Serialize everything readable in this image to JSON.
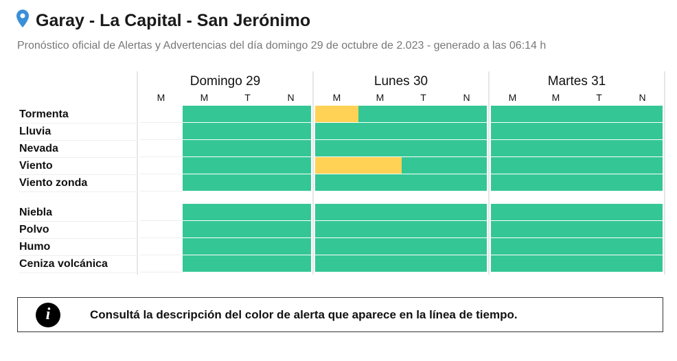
{
  "header": {
    "title": "Garay - La Capital - San Jerónimo",
    "subtitle": "Pronóstico oficial de Alertas y Advertencias del día domingo 29 de octubre de 2.023 - generado a las 06:14 h"
  },
  "days": [
    {
      "label": "Domingo 29",
      "periods": [
        "M",
        "M",
        "T",
        "N"
      ]
    },
    {
      "label": "Lunes 30",
      "periods": [
        "M",
        "M",
        "T",
        "N"
      ]
    },
    {
      "label": "Martes 31",
      "periods": [
        "M",
        "M",
        "T",
        "N"
      ]
    }
  ],
  "colors": {
    "green": "#34c795",
    "yellow": "#ffd256"
  },
  "groups": [
    [
      {
        "label": "Tormenta",
        "levels": [
          null,
          "green",
          "green",
          "green",
          "yellow",
          "green",
          "green",
          "green",
          "green",
          "green",
          "green",
          "green"
        ]
      },
      {
        "label": "Lluvia",
        "levels": [
          null,
          "green",
          "green",
          "green",
          "green",
          "green",
          "green",
          "green",
          "green",
          "green",
          "green",
          "green"
        ]
      },
      {
        "label": "Nevada",
        "levels": [
          null,
          "green",
          "green",
          "green",
          "green",
          "green",
          "green",
          "green",
          "green",
          "green",
          "green",
          "green"
        ]
      },
      {
        "label": "Viento",
        "levels": [
          null,
          "green",
          "green",
          "green",
          "yellow",
          "yellow",
          "green",
          "green",
          "green",
          "green",
          "green",
          "green"
        ]
      },
      {
        "label": "Viento zonda",
        "levels": [
          null,
          "green",
          "green",
          "green",
          "green",
          "green",
          "green",
          "green",
          "green",
          "green",
          "green",
          "green"
        ]
      }
    ],
    [
      {
        "label": "Niebla",
        "levels": [
          null,
          "green",
          "green",
          "green",
          "green",
          "green",
          "green",
          "green",
          "green",
          "green",
          "green",
          "green"
        ]
      },
      {
        "label": "Polvo",
        "levels": [
          null,
          "green",
          "green",
          "green",
          "green",
          "green",
          "green",
          "green",
          "green",
          "green",
          "green",
          "green"
        ]
      },
      {
        "label": "Humo",
        "levels": [
          null,
          "green",
          "green",
          "green",
          "green",
          "green",
          "green",
          "green",
          "green",
          "green",
          "green",
          "green"
        ]
      },
      {
        "label": "Ceniza volcánica",
        "levels": [
          null,
          "green",
          "green",
          "green",
          "green",
          "green",
          "green",
          "green",
          "green",
          "green",
          "green",
          "green"
        ]
      }
    ]
  ],
  "info": {
    "text": "Consultá la descripción del color de alerta que aparece en la línea de tiempo.",
    "icon": "info-icon"
  }
}
